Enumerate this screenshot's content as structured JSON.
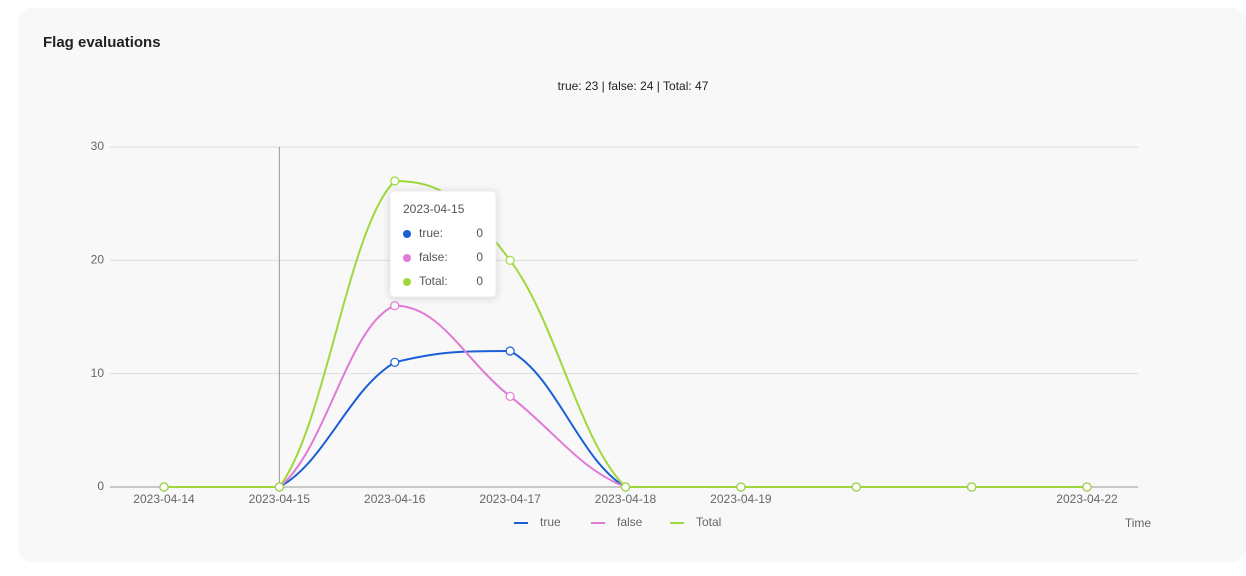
{
  "header": {
    "title": "Flag evaluations"
  },
  "chart_data": {
    "type": "line",
    "subtitle": "true: 23 | false: 24 | Total: 47",
    "x_label": "Time",
    "categories": [
      "2023-04-14",
      "2023-04-15",
      "2023-04-16",
      "2023-04-17",
      "2023-04-18",
      "2023-04-19",
      null,
      null,
      "2023-04-22"
    ],
    "series": [
      {
        "name": "true",
        "color": "#1a5fd6",
        "values": [
          0,
          0,
          11,
          12,
          0,
          0,
          0,
          0,
          0
        ]
      },
      {
        "name": "false",
        "color": "#e07ad6",
        "values": [
          0,
          0,
          16,
          8,
          0,
          0,
          0,
          0,
          0
        ]
      },
      {
        "name": "Total",
        "color": "#9fd83c",
        "values": [
          0,
          0,
          27,
          20,
          0,
          0,
          0,
          0,
          0
        ]
      }
    ],
    "ylim": [
      0,
      30
    ],
    "yticks": [
      0,
      10,
      20,
      30
    ],
    "grid": true,
    "smooth": true,
    "legend": "bottom",
    "tooltip": {
      "title": "2023-04-15",
      "rows": [
        {
          "label": "true:",
          "value": 0
        },
        {
          "label": "false:",
          "value": 0
        },
        {
          "label": "Total:",
          "value": 0
        }
      ]
    }
  }
}
